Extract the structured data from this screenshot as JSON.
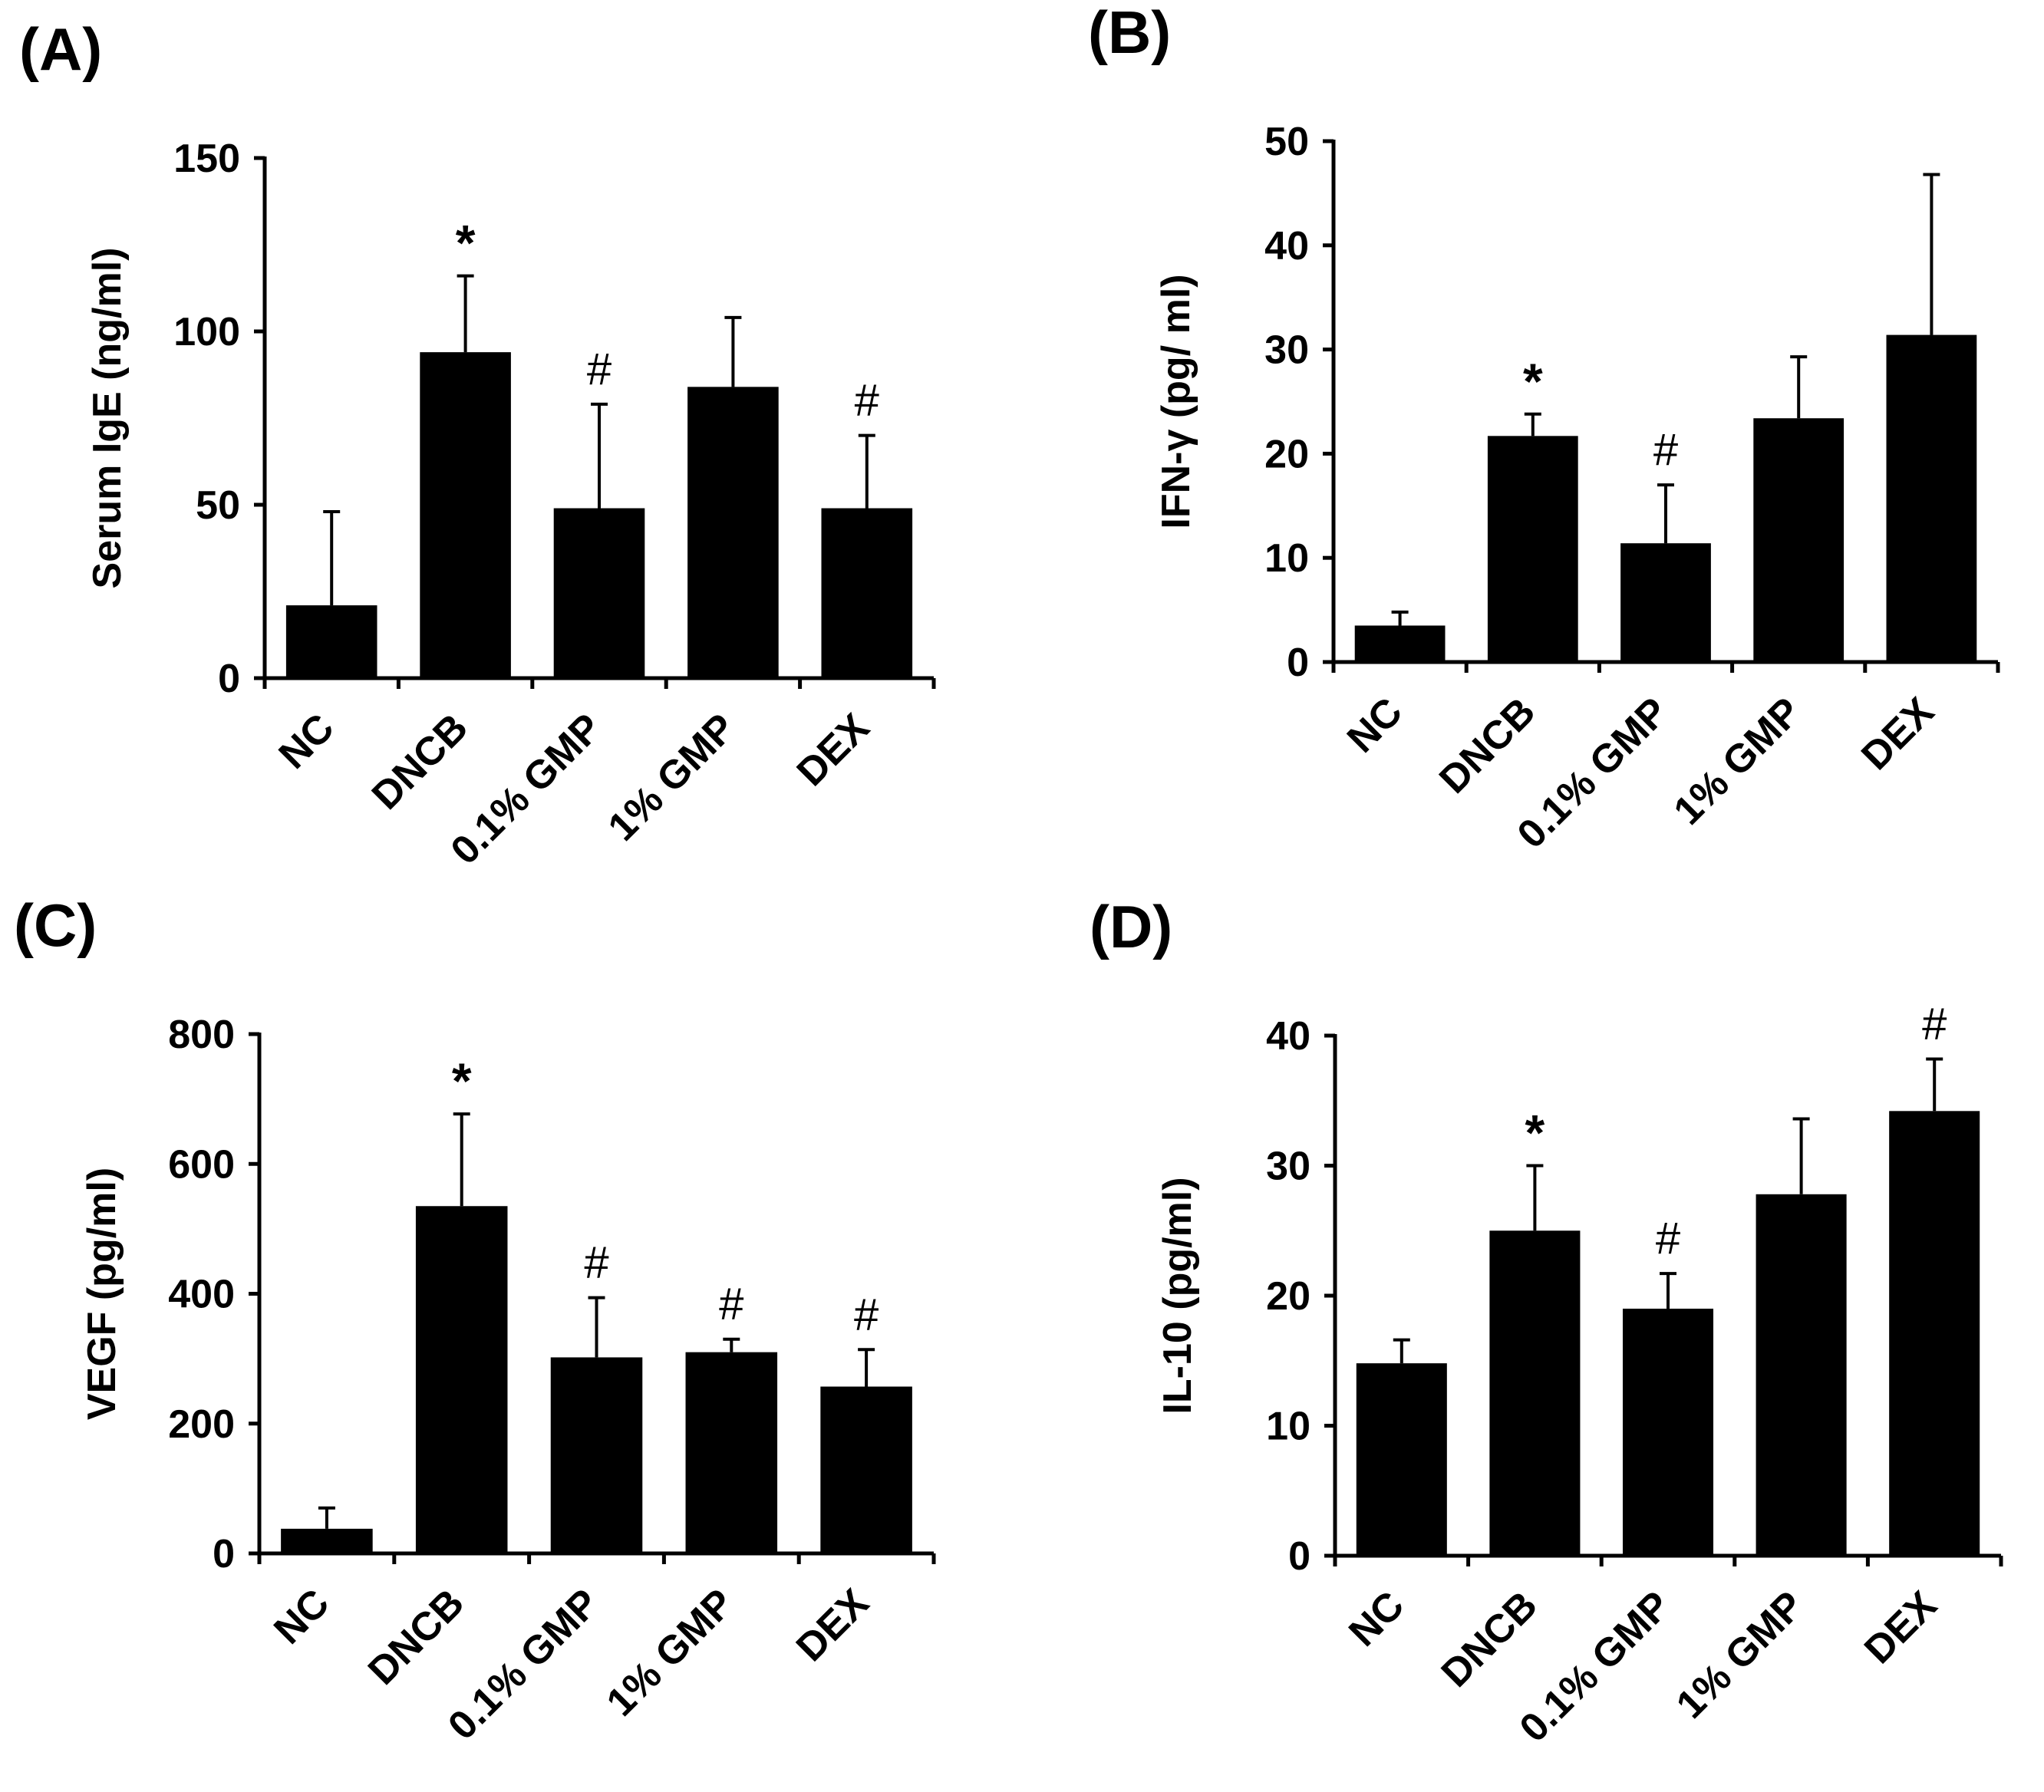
{
  "chart_data": [
    {
      "type": "bar",
      "panel": "(A)",
      "ylabel": "Serum IgE (ng/ml)",
      "ylim": [
        0,
        150
      ],
      "yticks": [
        0,
        50,
        100,
        150
      ],
      "categories": [
        "NC",
        "DNCB",
        "0.1% GMP",
        "1% GMP",
        "DEX"
      ],
      "values": [
        21,
        94,
        49,
        84,
        49
      ],
      "errors": [
        27,
        22,
        30,
        20,
        21
      ],
      "annotations": [
        "",
        "*",
        "#",
        "",
        "#"
      ]
    },
    {
      "type": "bar",
      "panel": "(B)",
      "ylabel": "IFN-γ (pg/ ml)",
      "ylim": [
        0,
        50
      ],
      "yticks": [
        0,
        10,
        20,
        30,
        40,
        50
      ],
      "categories": [
        "NC",
        "DNCB",
        "0.1% GMP",
        "1% GMP",
        "DEX"
      ],
      "values": [
        3.5,
        21.7,
        11.4,
        23.4,
        31.4
      ],
      "errors": [
        1.3,
        2.1,
        5.6,
        5.9,
        15.4
      ],
      "annotations": [
        "",
        "*",
        "#",
        "",
        ""
      ]
    },
    {
      "type": "bar",
      "panel": "(C)",
      "ylabel": "VEGF  (pg/ml)",
      "ylim": [
        0,
        800
      ],
      "yticks": [
        0,
        200,
        400,
        600,
        800
      ],
      "categories": [
        "NC",
        "DNCB",
        "0.1% GMP",
        "1% GMP",
        "DEX"
      ],
      "values": [
        38,
        535,
        302,
        310,
        257
      ],
      "errors": [
        32,
        142,
        92,
        20,
        57
      ],
      "annotations": [
        "",
        "*",
        "#",
        "#",
        "#"
      ]
    },
    {
      "type": "bar",
      "panel": "(D)",
      "ylabel": "IL-10 (pg/ml)",
      "ylim": [
        0,
        40
      ],
      "yticks": [
        0,
        10,
        20,
        30,
        40
      ],
      "categories": [
        "NC",
        "DNCB",
        "0.1% GMP",
        "1% GMP",
        "DEX"
      ],
      "values": [
        14.8,
        25,
        19,
        27.8,
        34.2
      ],
      "errors": [
        1.8,
        5,
        2.7,
        5.8,
        4
      ],
      "annotations": [
        "",
        "*",
        "#",
        "",
        "#"
      ]
    }
  ]
}
